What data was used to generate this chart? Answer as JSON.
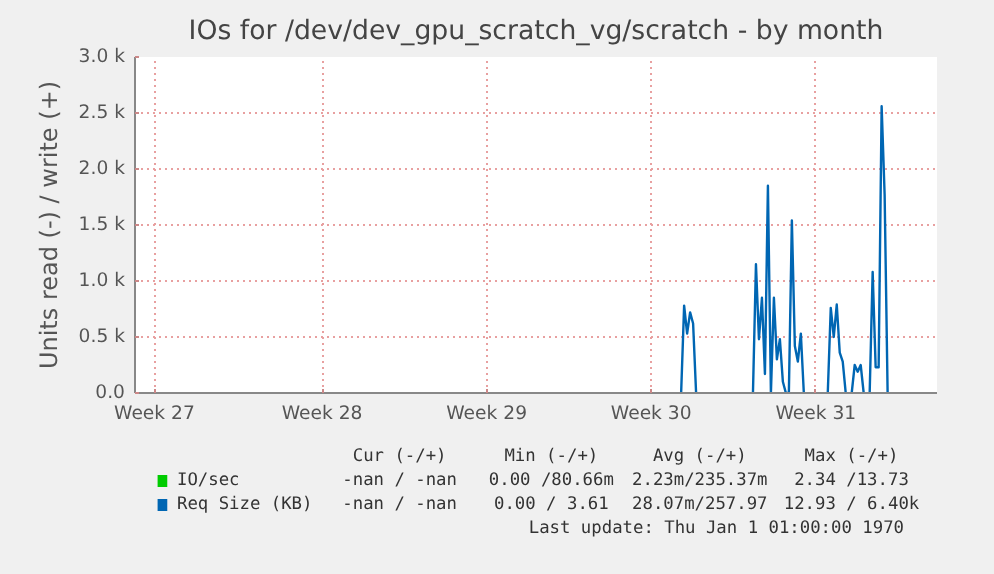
{
  "chart_data": {
    "type": "line",
    "title": "IOs for /dev/dev_gpu_scratch_vg/scratch - by month",
    "ylabel": "Units read (-) / write (+)",
    "categories": [
      null,
      null,
      null,
      null,
      null,
      null,
      "Week 27",
      null,
      null,
      null,
      null,
      null,
      null,
      null,
      null,
      null,
      null,
      null,
      null,
      null,
      null,
      null,
      null,
      null,
      null,
      null,
      null,
      null,
      null,
      null,
      null,
      null,
      null,
      null,
      null,
      null,
      null,
      null,
      null,
      null,
      null,
      null,
      null,
      null,
      null,
      null,
      null,
      null,
      null,
      null,
      null,
      null,
      null,
      null,
      null,
      null,
      null,
      null,
      null,
      null,
      null,
      null,
      "Week 28",
      null,
      null,
      null,
      null,
      null,
      null,
      null,
      null,
      null,
      null,
      null,
      null,
      null,
      null,
      null,
      null,
      null,
      null,
      null,
      null,
      null,
      null,
      null,
      null,
      null,
      null,
      null,
      null,
      null,
      null,
      null,
      null,
      null,
      null,
      null,
      null,
      null,
      null,
      null,
      null,
      null,
      null,
      null,
      null,
      null,
      null,
      null,
      null,
      null,
      null,
      null,
      null,
      null,
      null,
      "Week 29",
      null,
      null,
      null,
      null,
      null,
      null,
      null,
      null,
      null,
      null,
      null,
      null,
      null,
      null,
      null,
      null,
      null,
      null,
      null,
      null,
      null,
      null,
      null,
      null,
      null,
      null,
      null,
      null,
      null,
      null,
      null,
      null,
      null,
      null,
      null,
      null,
      null,
      null,
      null,
      null,
      null,
      null,
      null,
      null,
      null,
      null,
      null,
      null,
      null,
      null,
      null,
      null,
      null,
      null,
      "Week 30",
      null,
      null,
      null,
      null,
      null,
      null,
      null,
      null,
      null,
      null,
      null,
      null,
      null,
      null,
      null,
      null,
      null,
      null,
      null,
      null,
      null,
      null,
      null,
      null,
      null,
      null,
      null,
      null,
      null,
      null,
      null,
      null,
      null,
      null,
      null,
      null,
      null,
      null,
      null,
      null,
      null,
      null,
      null,
      null,
      null,
      null,
      null,
      null,
      null,
      null,
      null,
      null,
      null,
      null,
      "Week 31",
      null,
      null,
      null,
      null,
      null,
      null,
      null,
      null,
      null,
      null,
      null,
      null,
      null,
      null,
      null,
      null,
      null,
      null,
      null,
      null,
      null,
      null,
      null,
      null,
      null,
      null,
      null,
      null,
      null,
      null,
      null,
      null,
      null,
      null,
      null,
      null,
      null,
      null,
      null,
      null
    ],
    "series": [
      {
        "name": "IO/sec",
        "color": "#00cc00",
        "values": [
          null,
          null,
          null,
          null,
          null,
          null,
          null,
          null,
          null,
          null,
          null,
          null,
          null,
          null,
          null,
          null,
          null,
          null,
          null,
          null,
          null,
          null,
          null,
          null,
          null,
          null,
          null,
          null,
          null,
          null,
          null,
          null,
          null,
          null,
          null,
          null,
          null,
          null,
          null,
          null,
          null,
          null,
          null,
          null,
          null,
          null,
          null,
          null,
          null,
          null,
          null,
          null,
          null,
          null,
          null,
          null,
          null,
          null,
          null,
          null,
          null,
          null,
          null,
          null,
          null,
          null,
          null,
          null,
          null,
          null,
          null,
          null,
          null,
          null,
          null,
          null,
          null,
          null,
          null,
          null,
          null,
          null,
          null,
          null,
          null,
          null,
          null,
          null,
          null,
          null,
          null,
          null,
          null,
          null,
          null,
          null,
          null,
          null,
          null,
          null,
          null,
          null,
          null,
          null,
          null,
          null,
          null,
          null,
          null,
          null,
          null,
          null,
          null,
          null,
          null,
          null,
          null,
          null,
          null,
          null,
          null,
          null,
          null,
          null,
          null,
          null,
          null,
          null,
          null,
          null,
          null,
          null,
          null,
          null,
          null,
          null,
          null,
          null,
          null,
          null,
          null,
          null,
          null,
          null,
          null,
          null,
          null,
          null,
          null,
          null,
          null,
          null,
          null,
          null,
          null,
          null,
          null,
          null,
          null,
          null,
          null,
          null,
          null,
          null,
          null,
          null,
          null,
          null,
          null,
          null,
          null,
          null,
          null,
          null,
          null,
          null,
          null,
          null,
          null,
          null,
          null,
          null,
          null,
          null,
          null,
          null,
          null,
          null,
          null,
          null,
          null,
          null,
          null,
          null,
          null,
          null,
          null,
          null,
          null,
          null,
          null,
          null,
          null,
          null,
          null,
          null,
          null,
          null,
          null,
          null,
          null,
          null,
          null,
          null,
          null,
          null,
          null,
          null,
          null,
          null,
          null,
          null,
          null,
          null,
          null,
          null,
          null,
          null,
          null,
          null,
          null,
          null,
          null,
          null,
          null,
          null,
          null,
          null,
          null,
          null,
          null,
          null,
          null,
          null,
          null,
          null,
          null,
          null,
          null,
          null,
          null,
          null,
          null,
          null,
          null,
          null,
          null,
          null,
          null,
          null,
          null,
          null,
          null,
          null,
          null,
          null,
          null,
          null
        ]
      },
      {
        "name": "Req Size (KB)",
        "color": "#0066b3",
        "values": [
          null,
          null,
          null,
          null,
          null,
          null,
          null,
          null,
          null,
          null,
          null,
          null,
          null,
          null,
          null,
          null,
          null,
          null,
          null,
          null,
          null,
          null,
          null,
          null,
          null,
          null,
          null,
          null,
          null,
          null,
          null,
          null,
          null,
          null,
          null,
          null,
          null,
          null,
          null,
          null,
          null,
          null,
          null,
          null,
          null,
          null,
          null,
          null,
          null,
          null,
          null,
          null,
          null,
          null,
          null,
          null,
          null,
          null,
          null,
          null,
          null,
          null,
          null,
          null,
          null,
          null,
          null,
          null,
          null,
          null,
          null,
          null,
          null,
          null,
          null,
          null,
          null,
          null,
          null,
          null,
          null,
          null,
          null,
          null,
          null,
          null,
          null,
          null,
          null,
          null,
          null,
          null,
          null,
          null,
          null,
          null,
          null,
          null,
          null,
          null,
          null,
          null,
          null,
          null,
          null,
          null,
          null,
          null,
          null,
          null,
          null,
          null,
          null,
          null,
          null,
          null,
          null,
          null,
          null,
          null,
          null,
          null,
          null,
          null,
          null,
          null,
          null,
          null,
          null,
          null,
          null,
          null,
          null,
          null,
          null,
          null,
          null,
          null,
          null,
          null,
          null,
          null,
          null,
          null,
          null,
          null,
          null,
          null,
          null,
          null,
          null,
          null,
          null,
          null,
          null,
          null,
          null,
          null,
          null,
          null,
          null,
          null,
          null,
          null,
          null,
          null,
          null,
          null,
          null,
          null,
          null,
          null,
          null,
          null,
          null,
          null,
          null,
          null,
          null,
          null,
          null,
          null,
          0,
          780,
          530,
          720,
          620,
          0,
          null,
          null,
          null,
          null,
          null,
          null,
          null,
          null,
          null,
          null,
          null,
          null,
          null,
          null,
          null,
          null,
          null,
          null,
          0,
          1150,
          480,
          850,
          170,
          1850,
          0,
          850,
          300,
          480,
          100,
          0,
          0,
          1540,
          420,
          280,
          530,
          0,
          null,
          null,
          null,
          null,
          null,
          null,
          null,
          0,
          760,
          500,
          790,
          360,
          280,
          0,
          null,
          0,
          250,
          190,
          250,
          0,
          null,
          0,
          1080,
          230,
          230,
          2560,
          1770,
          0,
          null,
          null,
          null,
          null,
          null,
          null,
          null,
          null,
          null,
          null,
          null,
          null,
          null,
          null,
          null,
          null
        ]
      }
    ],
    "ylim": [
      0,
      3000
    ],
    "yticks": [
      {
        "value": 0,
        "label": "0.0"
      },
      {
        "value": 500,
        "label": "0.5 k"
      },
      {
        "value": 1000,
        "label": "1.0 k"
      },
      {
        "value": 1500,
        "label": "1.5 k"
      },
      {
        "value": 2000,
        "label": "2.0 k"
      },
      {
        "value": 2500,
        "label": "2.5 k"
      },
      {
        "value": 3000,
        "label": "3.0 k"
      }
    ],
    "grid": true,
    "legend": "bottom",
    "annotations": [
      "Cur (-/+)",
      "Min (-/+)",
      "Avg (-/+)",
      "Max (-/+)",
      "-nan / -nan",
      "0.00 /80.66m",
      "2.23m/235.37m",
      "2.34 /13.73",
      "-nan / -nan",
      "0.00 / 3.61",
      "28.07m/257.97",
      "12.93 / 6.40k",
      "Last update: Thu Jan  1 01:00:00 1970"
    ]
  }
}
